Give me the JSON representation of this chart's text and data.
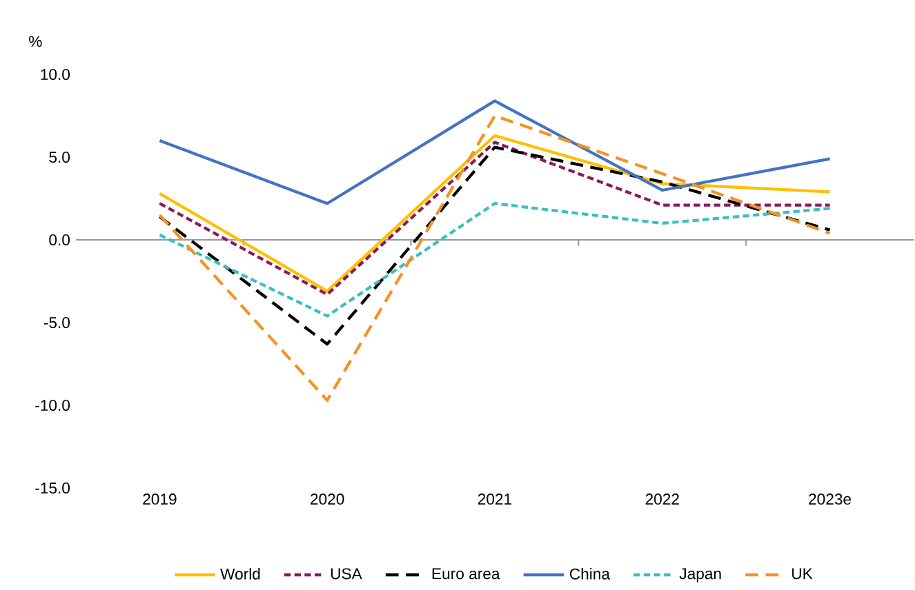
{
  "chart_data": {
    "type": "line",
    "ylabel": "%",
    "categories": [
      "2019",
      "2020",
      "2021",
      "2022",
      "2023e"
    ],
    "ylim": [
      -15,
      10
    ],
    "yticks": [
      {
        "value": -15,
        "label": "-15.0"
      },
      {
        "value": -10,
        "label": "-10.0"
      },
      {
        "value": -5,
        "label": "-5.0"
      },
      {
        "value": 0,
        "label": "0.0"
      },
      {
        "value": 5,
        "label": "5.0"
      },
      {
        "value": 10,
        "label": "10.0"
      }
    ],
    "legend": "bottom",
    "marker": "none",
    "series": [
      {
        "name": "World",
        "color": "#ffc000",
        "line_style": "solid",
        "values": [
          2.8,
          -3.1,
          6.3,
          3.4,
          2.9
        ]
      },
      {
        "name": "USA",
        "color": "#8b1a5a",
        "line_style": "dotted",
        "values": [
          2.2,
          -3.3,
          5.9,
          2.1,
          2.1
        ]
      },
      {
        "name": "Euro area",
        "color": "#000000",
        "line_style": "dashed",
        "values": [
          1.4,
          -6.3,
          5.6,
          3.5,
          0.6
        ]
      },
      {
        "name": "China",
        "color": "#4472c4",
        "line_style": "solid",
        "values": [
          6.0,
          2.2,
          8.4,
          3.0,
          4.9
        ]
      },
      {
        "name": "Japan",
        "color": "#3bbfbf",
        "line_style": "dotted",
        "values": [
          0.3,
          -4.6,
          2.2,
          1.0,
          1.9
        ]
      },
      {
        "name": "UK",
        "color": "#f39325",
        "line_style": "dashed",
        "values": [
          1.5,
          -9.7,
          7.5,
          4.0,
          0.4
        ]
      }
    ]
  }
}
